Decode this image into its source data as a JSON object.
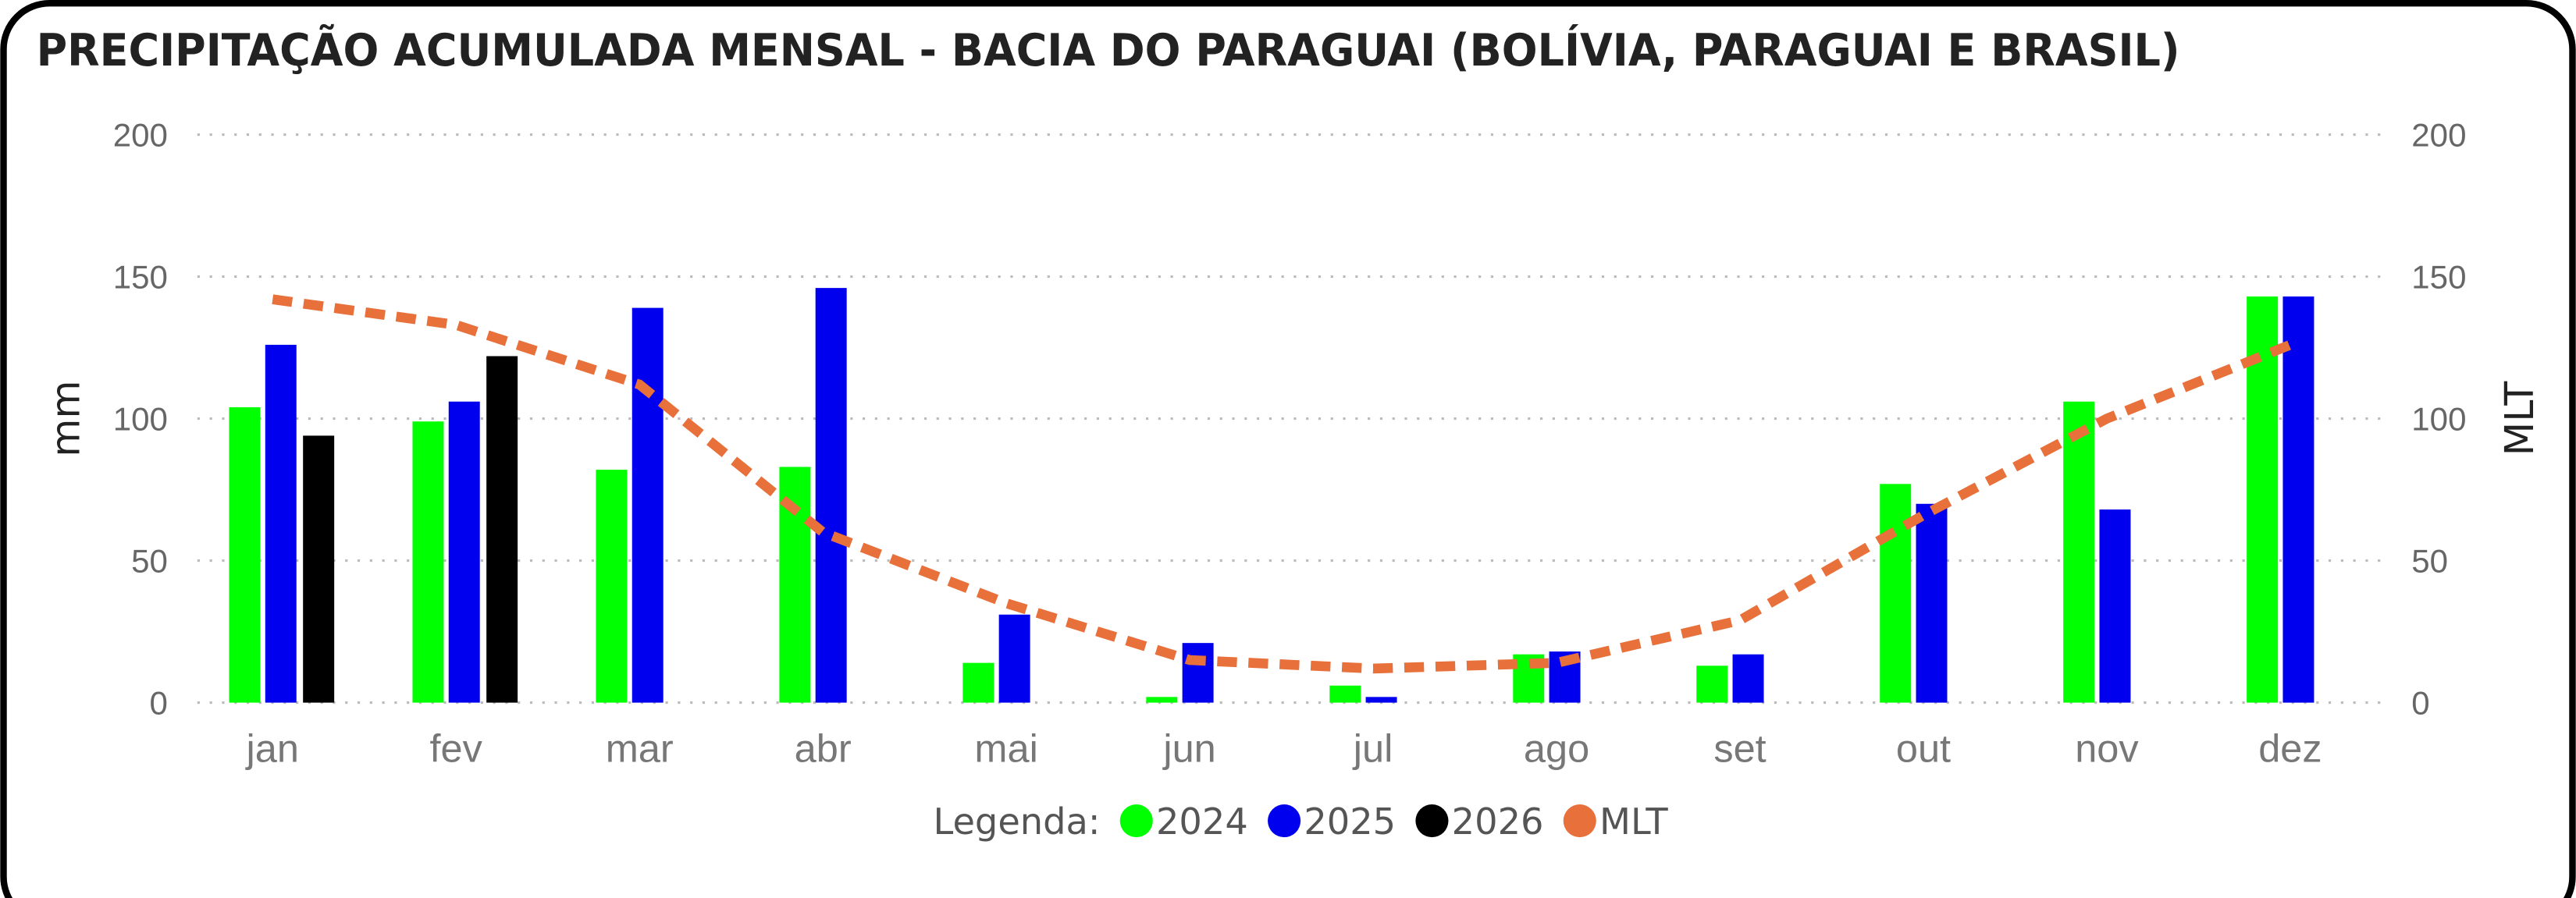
{
  "chart_data": {
    "type": "bar",
    "title": "PRECIPITAÇÃO ACUMULADA MENSAL - BACIA DO PARAGUAI (BOLÍVIA, PARAGUAI E BRASIL)",
    "y_label": "mm",
    "y2_label": "MLT",
    "legend_title": "Legenda:",
    "categories": [
      "jan",
      "fev",
      "mar",
      "abr",
      "mai",
      "jun",
      "jul",
      "ago",
      "set",
      "out",
      "nov",
      "dez"
    ],
    "series": [
      {
        "name": "2024",
        "color": "#00ff00",
        "values": [
          104,
          99,
          82,
          83,
          14,
          2,
          6,
          17,
          13,
          77,
          106,
          143
        ]
      },
      {
        "name": "2025",
        "color": "#0000ee",
        "values": [
          126,
          106,
          139,
          146,
          31,
          21,
          2,
          18,
          17,
          70,
          68,
          143
        ]
      },
      {
        "name": "2026",
        "color": "#000000",
        "values": [
          94,
          122,
          null,
          null,
          null,
          null,
          null,
          null,
          null,
          null,
          null,
          null
        ]
      },
      {
        "name": "MLT",
        "color": "#e8703a",
        "type": "line",
        "axis": "y2",
        "values": [
          142,
          133,
          112,
          60,
          35,
          15,
          12,
          14,
          29,
          66,
          100,
          126
        ]
      }
    ],
    "ylim": [
      0,
      200
    ],
    "yticks": [
      0,
      50,
      100,
      150,
      200
    ],
    "y2lim": [
      0,
      200
    ],
    "y2ticks": [
      0,
      50,
      100,
      150,
      200
    ],
    "grid": true
  }
}
